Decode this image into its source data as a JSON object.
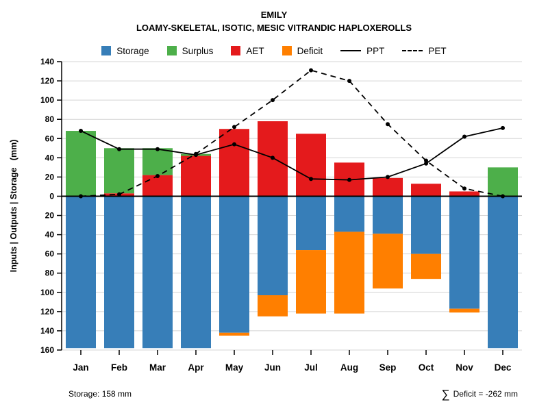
{
  "chart_data": {
    "type": "bar",
    "title": "EMILY",
    "subtitle": "LOAMY-SKELETAL, ISOTIC, MESIC VITRANDIC HAPLOXEROLLS",
    "ylabel": "Inputs | Outputs | Storage   (mm)",
    "categories": [
      "Jan",
      "Feb",
      "Mar",
      "Apr",
      "May",
      "Jun",
      "Jul",
      "Aug",
      "Sep",
      "Oct",
      "Nov",
      "Dec"
    ],
    "axis": {
      "top_max": 140,
      "bottom_max": 160,
      "tick_step": 20,
      "grid": true
    },
    "legend_position": "top",
    "colors": {
      "storage": "#377eb8",
      "surplus": "#4daf4a",
      "aet": "#e41a1c",
      "deficit": "#ff7f00",
      "line": "#000000",
      "gridline": "#d4d4d4"
    },
    "series": [
      {
        "name": "Storage",
        "type": "bar-below",
        "color": "#377eb8",
        "values": [
          158,
          158,
          158,
          158,
          142,
          103,
          56,
          37,
          39,
          60,
          117,
          158
        ]
      },
      {
        "name": "Surplus",
        "type": "bar-above",
        "color": "#4daf4a",
        "values": [
          68,
          47,
          28,
          2,
          0,
          0,
          0,
          0,
          0,
          0,
          0,
          30
        ]
      },
      {
        "name": "AET",
        "type": "bar-above",
        "color": "#e41a1c",
        "values": [
          0,
          3,
          22,
          42,
          70,
          78,
          65,
          35,
          19,
          13,
          5,
          0
        ]
      },
      {
        "name": "Deficit",
        "type": "bar-below",
        "color": "#ff7f00",
        "values": [
          0,
          0,
          0,
          0,
          3,
          22,
          66,
          85,
          57,
          26,
          4,
          0
        ]
      },
      {
        "name": "PPT",
        "type": "line-solid",
        "color": "#000000",
        "values": [
          68,
          49,
          49,
          43,
          54,
          40,
          18,
          17,
          20,
          34,
          62,
          71
        ]
      },
      {
        "name": "PET",
        "type": "line-dashed",
        "color": "#000000",
        "values": [
          0,
          2,
          21,
          44,
          72,
          100,
          131,
          120,
          75,
          37,
          8,
          0
        ]
      }
    ],
    "footer": {
      "storage_label": "Storage: 158 mm",
      "sigma": "∑",
      "deficit_text": "Deficit = -262 mm"
    }
  }
}
